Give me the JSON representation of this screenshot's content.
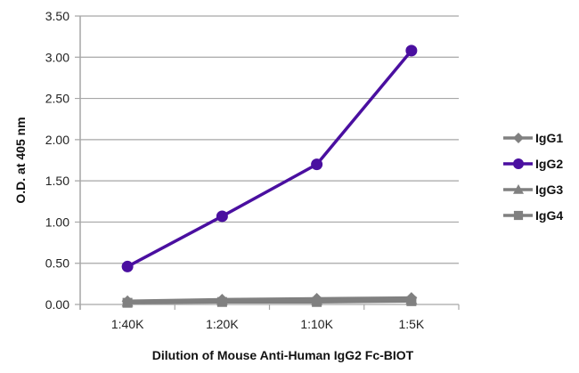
{
  "chart_data": {
    "type": "line",
    "title": "",
    "xlabel": "Dilution of Mouse Anti-Human IgG2 Fc-BIOT",
    "ylabel": "O.D. at 405 nm",
    "categories": [
      "1:40K",
      "1:20K",
      "1:10K",
      "1:5K"
    ],
    "ylim": [
      0,
      3.5
    ],
    "yticks": [
      "0.00",
      "0.50",
      "1.00",
      "1.50",
      "2.00",
      "2.50",
      "3.00",
      "3.50"
    ],
    "grid": true,
    "legend_position": "right",
    "series": [
      {
        "name": "IgG1",
        "marker": "diamond",
        "color": "#808080",
        "values": [
          0.04,
          0.06,
          0.07,
          0.08
        ]
      },
      {
        "name": "IgG2",
        "marker": "circle",
        "color": "#4a0fa0",
        "values": [
          0.46,
          1.07,
          1.7,
          3.08
        ]
      },
      {
        "name": "IgG3",
        "marker": "triangle",
        "color": "#808080",
        "values": [
          0.03,
          0.05,
          0.05,
          0.06
        ]
      },
      {
        "name": "IgG4",
        "marker": "square",
        "color": "#808080",
        "values": [
          0.02,
          0.03,
          0.03,
          0.04
        ]
      }
    ]
  }
}
